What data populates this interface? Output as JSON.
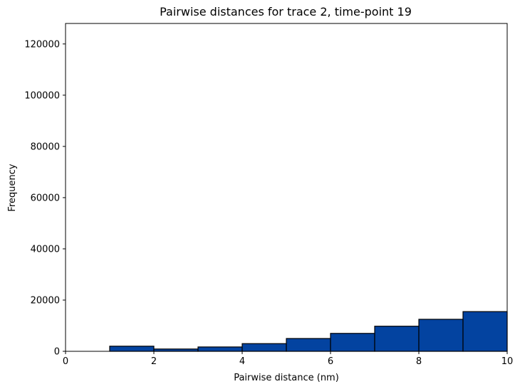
{
  "chart_data": {
    "type": "bar",
    "title": "Pairwise distances for trace 2, time-point 19",
    "xlabel": "Pairwise distance (nm)",
    "ylabel": "Frequency",
    "xlim": [
      0,
      10
    ],
    "ylim": [
      0,
      128000
    ],
    "xticks": [
      0,
      2,
      4,
      6,
      8,
      10
    ],
    "yticks": [
      0,
      20000,
      40000,
      60000,
      80000,
      100000,
      120000
    ],
    "bins": [
      [
        0,
        1
      ],
      [
        1,
        2
      ],
      [
        2,
        3
      ],
      [
        3,
        4
      ],
      [
        4,
        5
      ],
      [
        5,
        6
      ],
      [
        6,
        7
      ],
      [
        7,
        8
      ],
      [
        8,
        9
      ],
      [
        9,
        10
      ]
    ],
    "values": [
      0,
      2000,
      900,
      1700,
      3000,
      5000,
      7000,
      9800,
      12500,
      15500
    ],
    "bar_color": "#0343a0",
    "edge_color": "#000000",
    "grid": false,
    "legend": "none"
  }
}
